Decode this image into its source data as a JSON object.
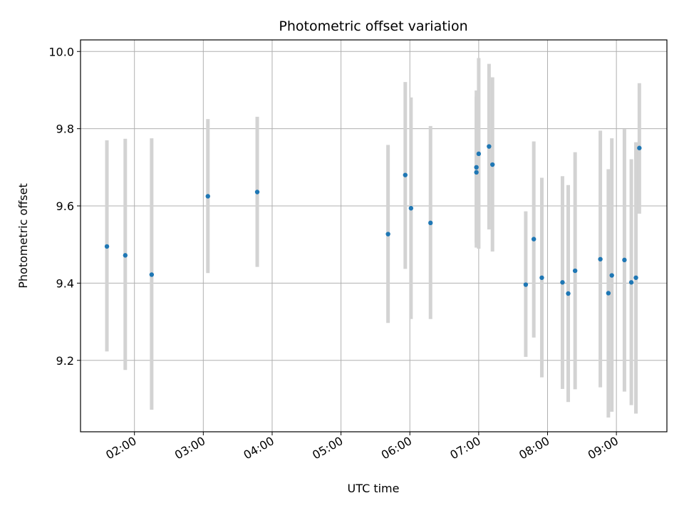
{
  "chart_data": {
    "type": "scatter",
    "title": "Photometric offset variation",
    "xlabel": "UTC time",
    "ylabel": "Photometric offset",
    "x_axis": {
      "kind": "time",
      "ticks": [
        "02:00",
        "03:00",
        "04:00",
        "05:00",
        "06:00",
        "07:00",
        "08:00",
        "09:00"
      ],
      "xlim": [
        "01:13",
        "09:44"
      ]
    },
    "y_axis": {
      "ticks": [
        "9.2",
        "9.4",
        "9.6",
        "9.8",
        "10.0"
      ],
      "ylim": [
        9.015,
        10.03
      ]
    },
    "grid": true,
    "point_color": "#1f77b4",
    "errorbar_color": "#d3d3d3",
    "points": [
      {
        "x": "01:36",
        "y": 9.495,
        "err_low": 9.223,
        "err_high": 9.77
      },
      {
        "x": "01:52",
        "y": 9.472,
        "err_low": 9.175,
        "err_high": 9.774
      },
      {
        "x": "02:15",
        "y": 9.422,
        "err_low": 9.072,
        "err_high": 9.775
      },
      {
        "x": "03:04",
        "y": 9.625,
        "err_low": 9.426,
        "err_high": 9.825
      },
      {
        "x": "03:47",
        "y": 9.636,
        "err_low": 9.442,
        "err_high": 9.831
      },
      {
        "x": "05:41",
        "y": 9.527,
        "err_low": 9.297,
        "err_high": 9.758
      },
      {
        "x": "05:56",
        "y": 9.68,
        "err_low": 9.437,
        "err_high": 9.921
      },
      {
        "x": "06:01",
        "y": 9.594,
        "err_low": 9.307,
        "err_high": 9.881
      },
      {
        "x": "06:18",
        "y": 9.556,
        "err_low": 9.307,
        "err_high": 9.807
      },
      {
        "x": "06:58",
        "y": 9.7,
        "err_low": 9.505,
        "err_high": 9.899
      },
      {
        "x": "06:58",
        "y": 9.687,
        "err_low": 9.492,
        "err_high": 9.883
      },
      {
        "x": "07:00",
        "y": 9.735,
        "err_low": 9.489,
        "err_high": 9.983
      },
      {
        "x": "07:09",
        "y": 9.754,
        "err_low": 9.539,
        "err_high": 9.968
      },
      {
        "x": "07:12",
        "y": 9.707,
        "err_low": 9.482,
        "err_high": 9.933
      },
      {
        "x": "07:41",
        "y": 9.396,
        "err_low": 9.209,
        "err_high": 9.586
      },
      {
        "x": "07:48",
        "y": 9.514,
        "err_low": 9.259,
        "err_high": 9.767
      },
      {
        "x": "07:55",
        "y": 9.414,
        "err_low": 9.156,
        "err_high": 9.673
      },
      {
        "x": "08:13",
        "y": 9.402,
        "err_low": 9.126,
        "err_high": 9.677
      },
      {
        "x": "08:18",
        "y": 9.373,
        "err_low": 9.092,
        "err_high": 9.654
      },
      {
        "x": "08:24",
        "y": 9.432,
        "err_low": 9.125,
        "err_high": 9.739
      },
      {
        "x": "08:46",
        "y": 9.462,
        "err_low": 9.13,
        "err_high": 9.795
      },
      {
        "x": "08:53",
        "y": 9.374,
        "err_low": 9.052,
        "err_high": 9.695
      },
      {
        "x": "08:56",
        "y": 9.42,
        "err_low": 9.067,
        "err_high": 9.775
      },
      {
        "x": "09:07",
        "y": 9.46,
        "err_low": 9.119,
        "err_high": 9.799
      },
      {
        "x": "09:13",
        "y": 9.402,
        "err_low": 9.084,
        "err_high": 9.721
      },
      {
        "x": "09:17",
        "y": 9.414,
        "err_low": 9.062,
        "err_high": 9.765
      },
      {
        "x": "09:20",
        "y": 9.75,
        "err_low": 9.58,
        "err_high": 9.918
      }
    ]
  }
}
